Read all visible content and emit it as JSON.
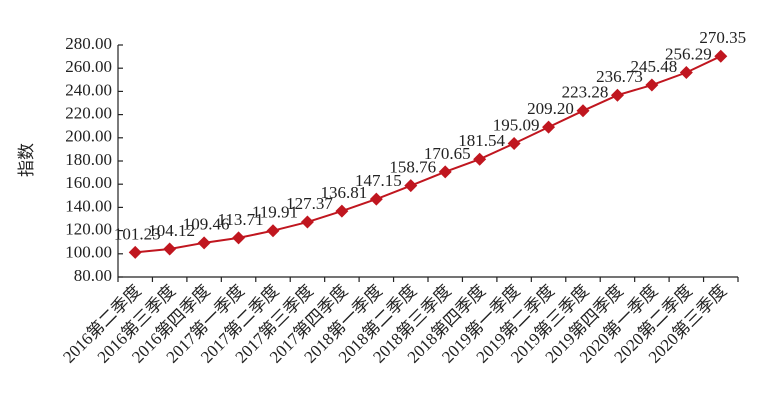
{
  "chart_data": {
    "type": "line",
    "y_label": "指数",
    "categories": [
      "2016第二季度",
      "2016第三季度",
      "2016第四季度",
      "2017第一季度",
      "2017第二季度",
      "2017第三季度",
      "2017第四季度",
      "2018第一季度",
      "2018第二季度",
      "2018第三季度",
      "2018第四季度",
      "2019第一季度",
      "2019第二季度",
      "2019第三季度",
      "2019第四季度",
      "2020第一季度",
      "2020第二季度",
      "2020第三季度"
    ],
    "values": [
      101.23,
      104.12,
      109.46,
      113.71,
      119.91,
      127.37,
      136.81,
      147.15,
      158.76,
      170.65,
      181.54,
      195.09,
      209.2,
      223.28,
      236.73,
      245.48,
      256.29,
      270.35
    ],
    "value_labels": [
      "101.23",
      "104.12",
      "109.46",
      "113.71",
      "119.91",
      "127.37",
      "136.81",
      "147.15",
      "158.76",
      "170.65",
      "181.54",
      "195.09",
      "209.20",
      "223.28",
      "236.73",
      "245.48",
      "256.29",
      "270.35"
    ],
    "color": "#c0161f",
    "ylim": [
      80,
      280
    ],
    "yticks": [
      {
        "value": 80,
        "label": "80.00"
      },
      {
        "value": 100,
        "label": "100.00"
      },
      {
        "value": 120,
        "label": "120.00"
      },
      {
        "value": 140,
        "label": "140.00"
      },
      {
        "value": 160,
        "label": "160.00"
      },
      {
        "value": 180,
        "label": "180.00"
      },
      {
        "value": 200,
        "label": "200.00"
      },
      {
        "value": 220,
        "label": "220.00"
      },
      {
        "value": 240,
        "label": "240.00"
      },
      {
        "value": 260,
        "label": "260.00"
      },
      {
        "value": 280,
        "label": "280.00"
      }
    ],
    "grid": false
  }
}
